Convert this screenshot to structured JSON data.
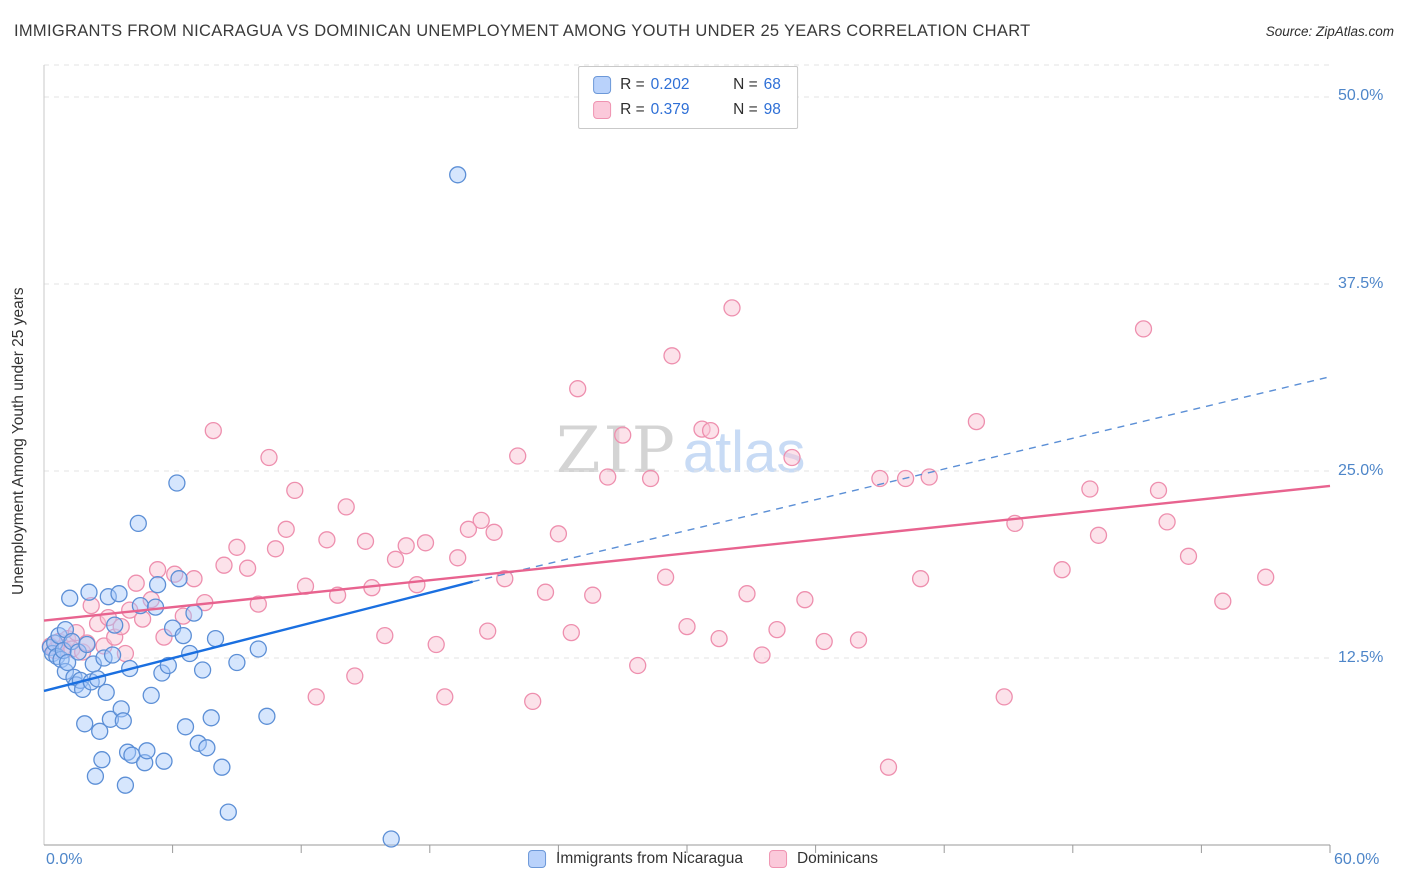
{
  "header": {
    "title": "IMMIGRANTS FROM NICARAGUA VS DOMINICAN UNEMPLOYMENT AMONG YOUTH UNDER 25 YEARS CORRELATION CHART",
    "source": "Source: ZipAtlas.com"
  },
  "axes": {
    "y_axis_label": "Unemployment Among Youth under 25 years",
    "y_ticks": [
      "50.0%",
      "37.5%",
      "25.0%",
      "12.5%"
    ],
    "x_min_label": "0.0%",
    "x_max_label": "60.0%"
  },
  "legend_box": {
    "rows": [
      {
        "series": "Immigrants from Nicaragua",
        "r_label": "R =",
        "r_value": "0.202",
        "n_label": "N =",
        "n_value": "68"
      },
      {
        "series": "Dominicans",
        "r_label": "R =",
        "r_value": "0.379",
        "n_label": "N =",
        "n_value": "98"
      }
    ]
  },
  "watermark": {
    "zip": "ZIP",
    "atlas": "atlas"
  },
  "bottom_legend": {
    "items": [
      {
        "label": "Immigrants from Nicaragua",
        "color": "#b9d2fb"
      },
      {
        "label": "Dominicans",
        "color": "#fbc9da"
      }
    ]
  },
  "chart_data": {
    "type": "scatter",
    "title": "Immigrants from Nicaragua vs Dominican Unemployment Among Youth under 25 years",
    "xlabel": "Immigrants from Nicaragua (%)",
    "ylabel": "Unemployment Among Youth under 25 years (%)",
    "x_range": [
      0,
      60
    ],
    "y_range": [
      0,
      52
    ],
    "y_gridlines": [
      12.5,
      25,
      37.5,
      50
    ],
    "x_tick_step": 6,
    "grid": true,
    "legend_position": "top-center",
    "series": [
      {
        "name": "Immigrants from Nicaragua",
        "R": 0.202,
        "N": 68,
        "stroke": "#5c8fd6",
        "fill": "rgba(164,199,250,0.45)",
        "points": [
          [
            0.3,
            13.2
          ],
          [
            0.4,
            12.8
          ],
          [
            0.5,
            13.5
          ],
          [
            0.6,
            12.6
          ],
          [
            0.7,
            14.0
          ],
          [
            0.8,
            12.4
          ],
          [
            0.9,
            13.0
          ],
          [
            1.0,
            11.6
          ],
          [
            1.0,
            14.4
          ],
          [
            1.1,
            12.2
          ],
          [
            1.2,
            16.5
          ],
          [
            1.3,
            13.6
          ],
          [
            1.4,
            11.2
          ],
          [
            1.5,
            10.7
          ],
          [
            1.6,
            12.9
          ],
          [
            1.7,
            11.0
          ],
          [
            1.8,
            10.4
          ],
          [
            1.9,
            8.1
          ],
          [
            2.0,
            13.4
          ],
          [
            2.1,
            16.9
          ],
          [
            2.2,
            10.9
          ],
          [
            2.3,
            12.1
          ],
          [
            2.4,
            4.6
          ],
          [
            2.5,
            11.1
          ],
          [
            2.6,
            7.6
          ],
          [
            2.7,
            5.7
          ],
          [
            2.8,
            12.5
          ],
          [
            2.9,
            10.2
          ],
          [
            3.0,
            16.6
          ],
          [
            3.1,
            8.4
          ],
          [
            3.2,
            12.7
          ],
          [
            3.3,
            14.7
          ],
          [
            3.5,
            16.8
          ],
          [
            3.6,
            9.1
          ],
          [
            3.7,
            8.3
          ],
          [
            3.8,
            4.0
          ],
          [
            3.9,
            6.2
          ],
          [
            4.0,
            11.8
          ],
          [
            4.1,
            6.0
          ],
          [
            4.4,
            21.5
          ],
          [
            4.5,
            16.0
          ],
          [
            4.7,
            5.5
          ],
          [
            4.8,
            6.3
          ],
          [
            5.0,
            10.0
          ],
          [
            5.2,
            15.9
          ],
          [
            5.3,
            17.4
          ],
          [
            5.5,
            11.5
          ],
          [
            5.6,
            5.6
          ],
          [
            5.8,
            12.0
          ],
          [
            6.0,
            14.5
          ],
          [
            6.2,
            24.2
          ],
          [
            6.3,
            17.8
          ],
          [
            6.5,
            14.0
          ],
          [
            6.6,
            7.9
          ],
          [
            6.8,
            12.8
          ],
          [
            7.0,
            15.5
          ],
          [
            7.2,
            6.8
          ],
          [
            7.4,
            11.7
          ],
          [
            7.6,
            6.5
          ],
          [
            7.8,
            8.5
          ],
          [
            8.0,
            13.8
          ],
          [
            8.3,
            5.2
          ],
          [
            8.6,
            2.2
          ],
          [
            9.0,
            12.2
          ],
          [
            10.0,
            13.1
          ],
          [
            10.4,
            8.6
          ],
          [
            16.2,
            0.4
          ],
          [
            19.3,
            44.8
          ]
        ]
      },
      {
        "name": "Dominicans",
        "R": 0.379,
        "N": 98,
        "stroke": "#ee8fae",
        "fill": "rgba(249,197,214,0.5)",
        "points": [
          [
            0.3,
            13.3
          ],
          [
            0.5,
            13.0
          ],
          [
            0.7,
            13.6
          ],
          [
            0.9,
            13.2
          ],
          [
            1.1,
            13.8
          ],
          [
            1.3,
            13.1
          ],
          [
            1.5,
            14.2
          ],
          [
            1.8,
            12.9
          ],
          [
            2.0,
            13.5
          ],
          [
            2.2,
            16.0
          ],
          [
            2.5,
            14.8
          ],
          [
            2.8,
            13.3
          ],
          [
            3.0,
            15.2
          ],
          [
            3.3,
            13.9
          ],
          [
            3.6,
            14.6
          ],
          [
            3.8,
            12.8
          ],
          [
            4.0,
            15.7
          ],
          [
            4.3,
            17.5
          ],
          [
            4.6,
            15.1
          ],
          [
            5.0,
            16.4
          ],
          [
            5.3,
            18.4
          ],
          [
            5.6,
            13.9
          ],
          [
            6.1,
            18.1
          ],
          [
            6.5,
            15.3
          ],
          [
            7.0,
            17.8
          ],
          [
            7.5,
            16.2
          ],
          [
            7.9,
            27.7
          ],
          [
            8.4,
            18.7
          ],
          [
            9.0,
            19.9
          ],
          [
            9.5,
            18.5
          ],
          [
            10.0,
            16.1
          ],
          [
            10.5,
            25.9
          ],
          [
            10.8,
            19.8
          ],
          [
            11.3,
            21.1
          ],
          [
            11.7,
            23.7
          ],
          [
            12.2,
            17.3
          ],
          [
            12.7,
            9.9
          ],
          [
            13.2,
            20.4
          ],
          [
            13.7,
            16.7
          ],
          [
            14.1,
            22.6
          ],
          [
            14.5,
            11.3
          ],
          [
            15.0,
            20.3
          ],
          [
            15.3,
            17.2
          ],
          [
            15.9,
            14.0
          ],
          [
            16.4,
            19.1
          ],
          [
            16.9,
            20.0
          ],
          [
            17.4,
            17.4
          ],
          [
            17.8,
            20.2
          ],
          [
            18.3,
            13.4
          ],
          [
            18.7,
            9.9
          ],
          [
            19.3,
            19.2
          ],
          [
            19.8,
            21.1
          ],
          [
            20.4,
            21.7
          ],
          [
            20.7,
            14.3
          ],
          [
            21.0,
            20.9
          ],
          [
            21.5,
            17.8
          ],
          [
            22.1,
            26.0
          ],
          [
            22.8,
            9.6
          ],
          [
            23.4,
            16.9
          ],
          [
            24.0,
            20.8
          ],
          [
            24.6,
            14.2
          ],
          [
            24.9,
            30.5
          ],
          [
            25.6,
            16.7
          ],
          [
            26.3,
            24.6
          ],
          [
            27.0,
            27.4
          ],
          [
            27.7,
            12.0
          ],
          [
            28.3,
            24.5
          ],
          [
            29.0,
            17.9
          ],
          [
            29.3,
            32.7
          ],
          [
            30.0,
            14.6
          ],
          [
            30.7,
            27.8
          ],
          [
            31.1,
            27.7
          ],
          [
            31.5,
            13.8
          ],
          [
            32.1,
            35.9
          ],
          [
            32.8,
            16.8
          ],
          [
            33.5,
            12.7
          ],
          [
            34.2,
            14.4
          ],
          [
            34.9,
            25.9
          ],
          [
            35.5,
            16.4
          ],
          [
            36.4,
            13.6
          ],
          [
            38.0,
            13.7
          ],
          [
            39.0,
            24.5
          ],
          [
            39.4,
            5.2
          ],
          [
            40.2,
            24.5
          ],
          [
            40.9,
            17.8
          ],
          [
            41.3,
            24.6
          ],
          [
            43.5,
            28.3
          ],
          [
            44.8,
            9.9
          ],
          [
            45.3,
            21.5
          ],
          [
            47.5,
            18.4
          ],
          [
            48.8,
            23.8
          ],
          [
            49.2,
            20.7
          ],
          [
            51.3,
            34.5
          ],
          [
            52.0,
            23.7
          ],
          [
            52.4,
            21.6
          ],
          [
            53.4,
            19.3
          ],
          [
            55.0,
            16.3
          ],
          [
            57.0,
            17.9
          ]
        ]
      }
    ],
    "trend_lines": [
      {
        "series": "Immigrants from Nicaragua",
        "style": "solid",
        "color": "#1a6fe0",
        "x0": 0,
        "y0": 10.3,
        "x1": 20,
        "y1": 17.6
      },
      {
        "series": "Immigrants from Nicaragua",
        "style": "dashed",
        "color": "#5b8fd6",
        "x0": 20,
        "y0": 17.6,
        "x1": 60,
        "y1": 31.3
      },
      {
        "series": "Dominicans",
        "style": "solid",
        "color": "#e8638f",
        "x0": 0,
        "y0": 15.0,
        "x1": 60,
        "y1": 24.0
      }
    ]
  }
}
